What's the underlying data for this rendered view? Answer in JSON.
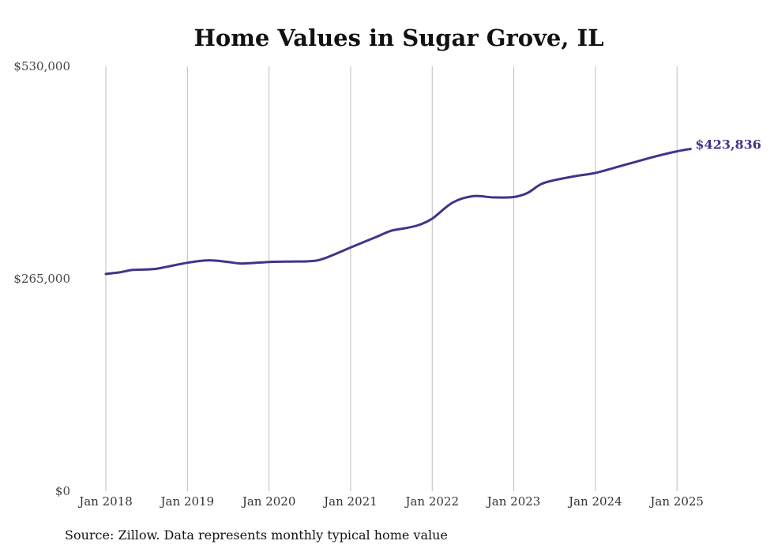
{
  "chart_data": {
    "type": "line",
    "title": "Home Values in Sugar Grove, IL",
    "xlabel": "",
    "ylabel": "",
    "ylim": [
      0,
      530000
    ],
    "y_ticks": [
      {
        "value": 0,
        "label": "$0"
      },
      {
        "value": 265000,
        "label": "$265,000"
      },
      {
        "value": 530000,
        "label": "$530,000"
      }
    ],
    "x_ticks": [
      {
        "value": 2018.0,
        "label": "Jan 2018"
      },
      {
        "value": 2019.0,
        "label": "Jan 2019"
      },
      {
        "value": 2020.0,
        "label": "Jan 2020"
      },
      {
        "value": 2021.0,
        "label": "Jan 2021"
      },
      {
        "value": 2022.0,
        "label": "Jan 2022"
      },
      {
        "value": 2023.0,
        "label": "Jan 2023"
      },
      {
        "value": 2024.0,
        "label": "Jan 2024"
      },
      {
        "value": 2025.0,
        "label": "Jan 2025"
      }
    ],
    "xlim": [
      2018.0,
      2025.25
    ],
    "grid": "vertical",
    "line_color": "#3f3589",
    "series": [
      {
        "x": [
          2018.0,
          2018.167,
          2018.333,
          2018.583,
          2018.75,
          2019.0,
          2019.25,
          2019.5,
          2019.667,
          2020.0,
          2020.25,
          2020.5,
          2020.667,
          2021.0,
          2021.167,
          2021.333,
          2021.5,
          2021.667,
          2021.833,
          2022.0,
          2022.25,
          2022.5,
          2022.75,
          2023.0,
          2023.167,
          2023.333,
          2023.5,
          2023.75,
          2024.0,
          2024.25,
          2024.5,
          2024.75,
          2025.0,
          2025.167
        ],
        "y": [
          271000,
          273000,
          276000,
          277000,
          280000,
          285000,
          288000,
          286000,
          284000,
          286000,
          286500,
          287000,
          290000,
          304000,
          311000,
          318000,
          325000,
          328000,
          332000,
          340000,
          360000,
          368000,
          366500,
          367000,
          372000,
          383000,
          388000,
          393000,
          397000,
          404000,
          411000,
          418000,
          424000,
          427000
        ]
      }
    ],
    "end_label": "$423,836",
    "source_note": "Source: Zillow. Data represents monthly typical home value"
  }
}
